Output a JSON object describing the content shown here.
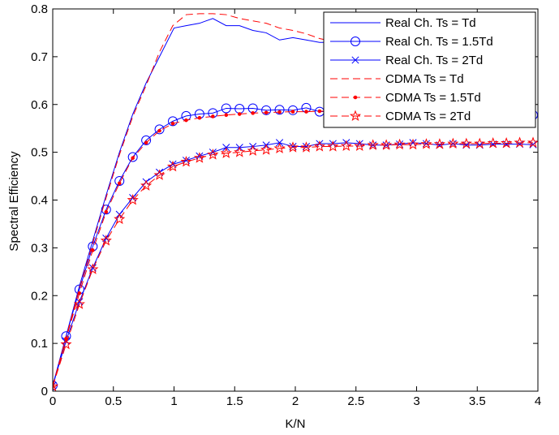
{
  "chart_data": {
    "type": "line",
    "title": "",
    "xlabel": "K/N",
    "ylabel": "Spectral Efficiency",
    "xlim": [
      0,
      4
    ],
    "ylim": [
      0,
      0.8
    ],
    "xticks": [
      0,
      0.5,
      1,
      1.5,
      2,
      2.5,
      3,
      3.5,
      4
    ],
    "xtick_labels": [
      "0",
      "0.5",
      "1",
      "1.5",
      "2",
      "2.5",
      "3",
      "3.5",
      "4"
    ],
    "yticks": [
      0,
      0.1,
      0.2,
      0.3,
      0.4,
      0.5,
      0.6,
      0.7,
      0.8
    ],
    "ytick_labels": [
      "0",
      "0.1",
      "0.2",
      "0.3",
      "0.4",
      "0.5",
      "0.6",
      "0.7",
      "0.8"
    ],
    "grid": false,
    "legend_position": "top-right",
    "series": [
      {
        "name": "Real Ch. Ts = Td",
        "color": "#0000ff",
        "line_style": "solid",
        "marker": "none",
        "x": [
          0,
          0.11,
          0.22,
          0.33,
          0.44,
          0.55,
          0.66,
          0.77,
          0.88,
          1.0,
          1.1,
          1.21,
          1.32,
          1.43,
          1.54,
          1.65,
          1.76,
          1.87,
          1.98,
          2.09,
          2.2,
          2.31
        ],
        "y": [
          0.01,
          0.115,
          0.22,
          0.315,
          0.41,
          0.5,
          0.58,
          0.645,
          0.7,
          0.76,
          0.765,
          0.77,
          0.78,
          0.765,
          0.765,
          0.755,
          0.75,
          0.735,
          0.74,
          0.735,
          0.73,
          0.73
        ]
      },
      {
        "name": "Real Ch. Ts = 1.5Td",
        "color": "#0000ff",
        "line_style": "solid",
        "marker": "circle",
        "x": [
          0,
          0.11,
          0.22,
          0.33,
          0.44,
          0.55,
          0.66,
          0.77,
          0.88,
          0.99,
          1.1,
          1.21,
          1.32,
          1.43,
          1.54,
          1.65,
          1.76,
          1.87,
          1.98,
          2.09,
          2.2,
          2.31,
          3.96
        ],
        "y": [
          0.012,
          0.115,
          0.213,
          0.303,
          0.38,
          0.44,
          0.49,
          0.525,
          0.548,
          0.565,
          0.576,
          0.58,
          0.582,
          0.592,
          0.591,
          0.592,
          0.588,
          0.589,
          0.588,
          0.593,
          0.585,
          0.586,
          0.578
        ]
      },
      {
        "name": "Real Ch. Ts = 2Td",
        "color": "#0000ff",
        "line_style": "solid",
        "marker": "x",
        "x": [
          0,
          0.11,
          0.22,
          0.33,
          0.44,
          0.55,
          0.66,
          0.77,
          0.88,
          0.99,
          1.1,
          1.21,
          1.32,
          1.43,
          1.54,
          1.65,
          1.76,
          1.87,
          1.98,
          2.09,
          2.2,
          2.31,
          2.42,
          2.53,
          2.64,
          2.75,
          2.86,
          2.97,
          3.08,
          3.19,
          3.3,
          3.41,
          3.52,
          3.63,
          3.74,
          3.85,
          3.96
        ],
        "y": [
          0.012,
          0.105,
          0.187,
          0.258,
          0.32,
          0.37,
          0.405,
          0.438,
          0.458,
          0.475,
          0.483,
          0.492,
          0.5,
          0.51,
          0.51,
          0.512,
          0.515,
          0.52,
          0.512,
          0.512,
          0.518,
          0.518,
          0.52,
          0.518,
          0.515,
          0.515,
          0.517,
          0.52,
          0.518,
          0.515,
          0.518,
          0.515,
          0.515,
          0.517,
          0.517,
          0.517,
          0.516
        ]
      },
      {
        "name": "CDMA Ts = Td",
        "color": "#ff0000",
        "line_style": "dashed",
        "marker": "none",
        "x": [
          0,
          0.11,
          0.22,
          0.33,
          0.44,
          0.55,
          0.66,
          0.77,
          0.88,
          0.99,
          1.1,
          1.21,
          1.32,
          1.43,
          1.54,
          1.65,
          1.76,
          1.87,
          1.98,
          2.09,
          2.2,
          2.31
        ],
        "y": [
          0.01,
          0.112,
          0.215,
          0.31,
          0.405,
          0.495,
          0.575,
          0.64,
          0.71,
          0.765,
          0.788,
          0.79,
          0.79,
          0.788,
          0.78,
          0.775,
          0.77,
          0.76,
          0.755,
          0.748,
          0.738,
          0.732
        ]
      },
      {
        "name": "CDMA Ts = 1.5Td",
        "color": "#ff0000",
        "line_style": "dashed",
        "marker": "dot",
        "x": [
          0,
          0.11,
          0.22,
          0.33,
          0.44,
          0.55,
          0.66,
          0.77,
          0.88,
          0.99,
          1.1,
          1.21,
          1.32,
          1.43,
          1.54,
          1.65,
          1.76,
          1.87,
          1.98,
          2.09,
          2.2,
          2.31,
          3.96
        ],
        "y": [
          0.01,
          0.11,
          0.205,
          0.295,
          0.375,
          0.435,
          0.488,
          0.52,
          0.545,
          0.56,
          0.567,
          0.572,
          0.575,
          0.578,
          0.58,
          0.582,
          0.583,
          0.584,
          0.585,
          0.585,
          0.586,
          0.586,
          0.58
        ]
      },
      {
        "name": "CDMA Ts = 2Td",
        "color": "#ff0000",
        "line_style": "dashed",
        "marker": "star",
        "x": [
          0,
          0.11,
          0.22,
          0.33,
          0.44,
          0.55,
          0.66,
          0.77,
          0.88,
          0.99,
          1.1,
          1.21,
          1.32,
          1.43,
          1.54,
          1.65,
          1.76,
          1.87,
          1.98,
          2.09,
          2.2,
          2.31,
          2.42,
          2.53,
          2.64,
          2.75,
          2.86,
          2.97,
          3.08,
          3.19,
          3.3,
          3.41,
          3.52,
          3.63,
          3.74,
          3.85,
          3.96
        ],
        "y": [
          0.01,
          0.098,
          0.182,
          0.255,
          0.315,
          0.36,
          0.4,
          0.43,
          0.452,
          0.47,
          0.48,
          0.488,
          0.495,
          0.498,
          0.5,
          0.503,
          0.505,
          0.508,
          0.51,
          0.51,
          0.512,
          0.512,
          0.513,
          0.513,
          0.515,
          0.515,
          0.516,
          0.516,
          0.517,
          0.517,
          0.518,
          0.518,
          0.518,
          0.519,
          0.519,
          0.52,
          0.52
        ]
      }
    ]
  }
}
